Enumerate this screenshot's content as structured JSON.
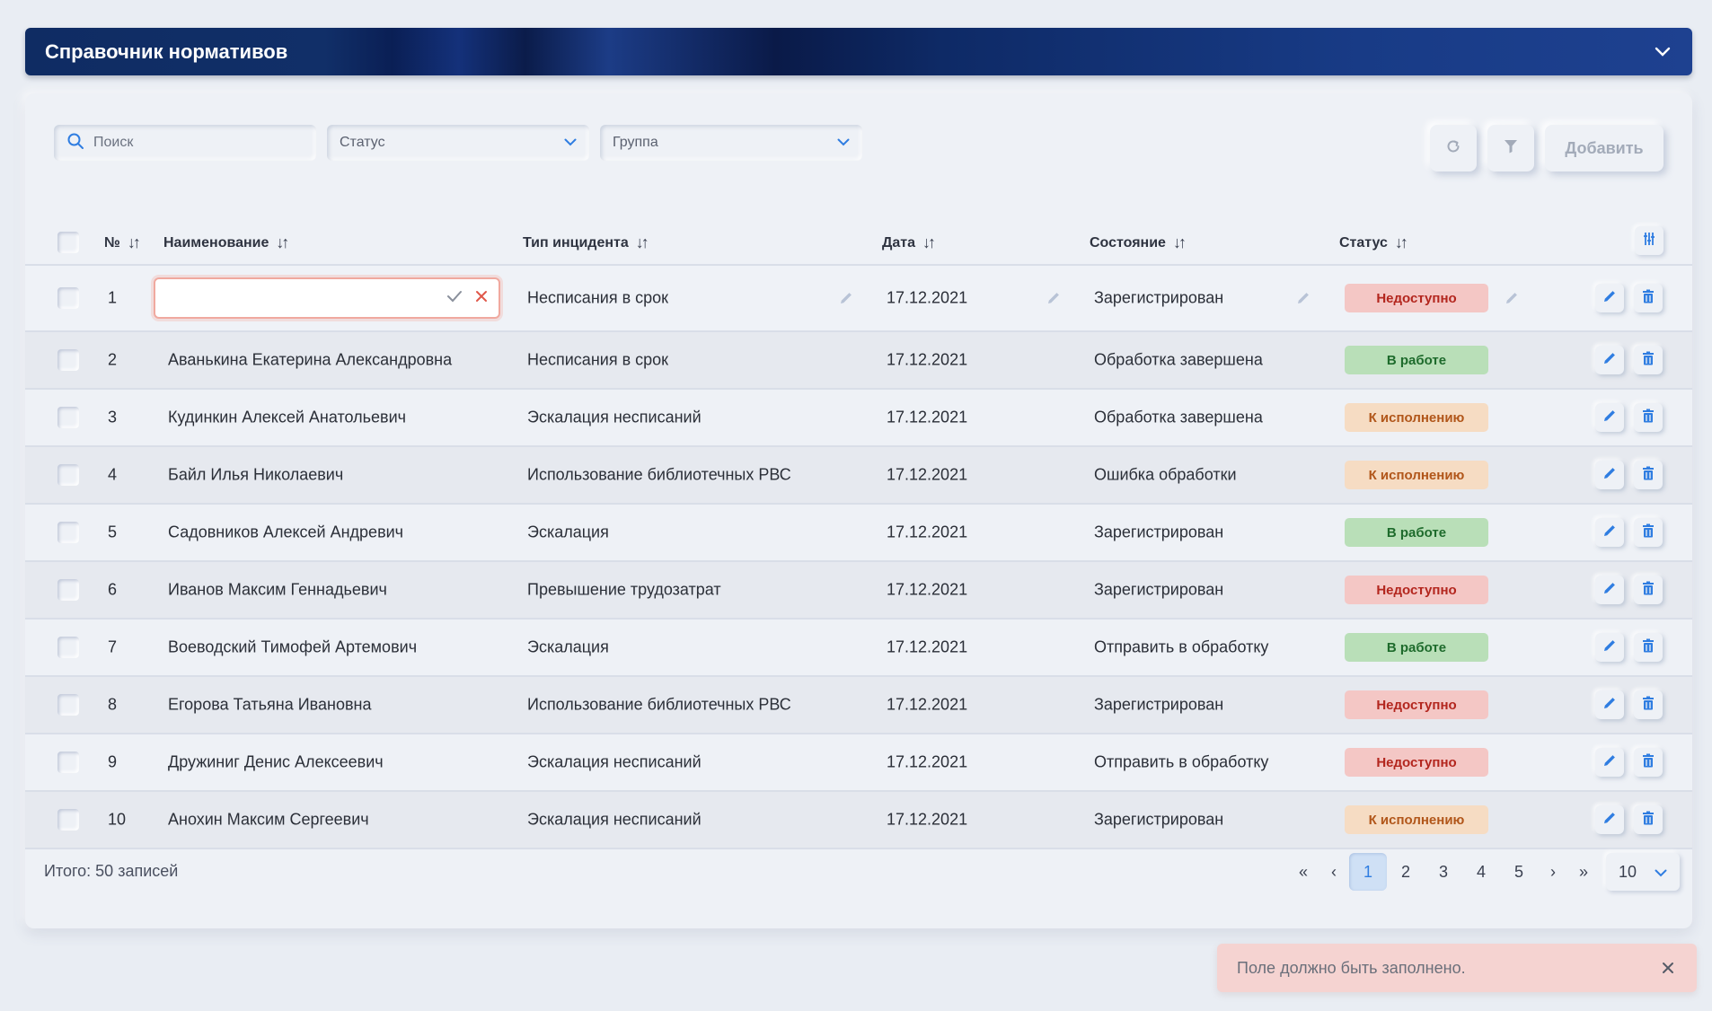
{
  "header": {
    "title": "Справочник нормативов",
    "collapse_icon": "chevron-down-icon"
  },
  "toolbar": {
    "search_placeholder": "Поиск",
    "status_select": "Статус",
    "group_select": "Группа",
    "add_label": "Добавить"
  },
  "table": {
    "columns": {
      "num": "№",
      "name": "Наименование",
      "incident_type": "Тип инцидента",
      "date": "Дата",
      "state": "Состояние",
      "status": "Статус"
    },
    "rows": [
      {
        "num": "1",
        "name": "",
        "incident_type": "Неcписания в срок",
        "date": "17.12.2021",
        "state": "Зарегистрирован",
        "status": "Недоступно",
        "status_color": "red"
      },
      {
        "num": "2",
        "name": "Аванькина Екатерина Александровна",
        "incident_type": "Неcписания в срок",
        "date": "17.12.2021",
        "state": "Обработка завершена",
        "status": "В работе",
        "status_color": "green"
      },
      {
        "num": "3",
        "name": "Кудинкин Алексей Анатольевич",
        "incident_type": "Эскалация неcписаний",
        "date": "17.12.2021",
        "state": "Обработка завершена",
        "status": "К исполнению",
        "status_color": "orange"
      },
      {
        "num": "4",
        "name": "Байл Илья Николаевич",
        "incident_type": "Использование библиотечных РВС",
        "date": "17.12.2021",
        "state": "Ошибка обработки",
        "status": "К исполнению",
        "status_color": "orange"
      },
      {
        "num": "5",
        "name": "Садовников Алексей Андревич",
        "incident_type": "Эскалация",
        "date": "17.12.2021",
        "state": "Зарегистрирован",
        "status": "В работе",
        "status_color": "green"
      },
      {
        "num": "6",
        "name": "Иванов Максим Геннадьевич",
        "incident_type": "Превышение трудозатрат",
        "date": "17.12.2021",
        "state": "Зарегистрирован",
        "status": "Недоступно",
        "status_color": "red"
      },
      {
        "num": "7",
        "name": "Воеводский Тимофей Артемович",
        "incident_type": "Эскалация",
        "date": "17.12.2021",
        "state": "Отправить в обработку",
        "status": "В работе",
        "status_color": "green"
      },
      {
        "num": "8",
        "name": "Егорова Татьяна Ивановна",
        "incident_type": "Использование библиотечных РВС",
        "date": "17.12.2021",
        "state": "Зарегистрирован",
        "status": "Недоступно",
        "status_color": "red"
      },
      {
        "num": "9",
        "name": "Дружиниг Денис Алексеевич",
        "incident_type": "Эскалация неcписаний",
        "date": "17.12.2021",
        "state": "Отправить в обработку",
        "status": "Недоступно",
        "status_color": "red"
      },
      {
        "num": "10",
        "name": "Анохин Максим Сергеевич",
        "incident_type": "Эскалация неcписаний",
        "date": "17.12.2021",
        "state": "Зарегистрирован",
        "status": "К исполнению",
        "status_color": "orange"
      }
    ]
  },
  "footer": {
    "total": "Итого: 50 записей",
    "pages": [
      "1",
      "2",
      "3",
      "4",
      "5"
    ],
    "current_page": "1",
    "first": "«",
    "prev": "‹",
    "next": "›",
    "last": "»",
    "per_page": "10"
  },
  "toast": {
    "message": "Поле должно быть заполнено."
  },
  "colors": {
    "accent": "#2f7de1",
    "header_bg": "#0f2c63",
    "error_border": "#f0a99f"
  }
}
